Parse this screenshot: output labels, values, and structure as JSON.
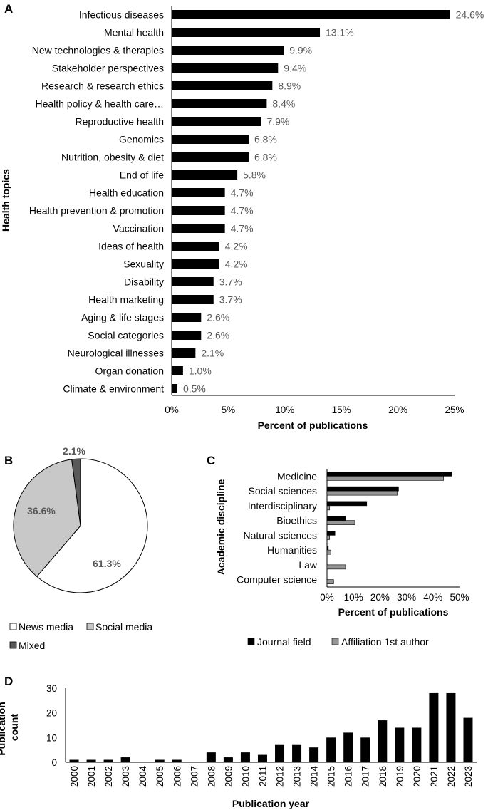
{
  "panels": {
    "a": "A",
    "b": "B",
    "c": "C",
    "d": "D"
  },
  "chart_data": [
    {
      "panel": "A",
      "type": "bar",
      "orientation": "horizontal",
      "xlabel": "Percent of publications",
      "ylabel": "Health topics",
      "xlim": [
        0,
        25
      ],
      "xticks": [
        "0%",
        "5%",
        "10%",
        "15%",
        "20%",
        "25%"
      ],
      "categories": [
        "Infectious diseases",
        "Mental health",
        "New technologies & therapies",
        "Stakeholder perspectives",
        "Research & research ethics",
        "Health policy & health care…",
        "Reproductive health",
        "Genomics",
        "Nutrition, obesity & diet",
        "End of life",
        "Health education",
        "Health prevention & promotion",
        "Vaccination",
        "Ideas of health",
        "Sexuality",
        "Disability",
        "Health marketing",
        "Aging & life stages",
        "Social categories",
        "Neurological illnesses",
        "Organ donation",
        "Climate & environment"
      ],
      "values": [
        24.6,
        13.1,
        9.9,
        9.4,
        8.9,
        8.4,
        7.9,
        6.8,
        6.8,
        5.8,
        4.7,
        4.7,
        4.7,
        4.2,
        4.2,
        3.7,
        3.7,
        2.6,
        2.6,
        2.1,
        1.0,
        0.5
      ],
      "data_labels": [
        "24.6%",
        "13.1%",
        "9.9%",
        "9.4%",
        "8.9%",
        "8.4%",
        "7.9%",
        "6.8%",
        "6.8%",
        "5.8%",
        "4.7%",
        "4.7%",
        "4.7%",
        "4.2%",
        "4.2%",
        "3.7%",
        "3.7%",
        "2.6%",
        "2.6%",
        "2.1%",
        "1.0%",
        "0.5%"
      ],
      "bar_color": "#000000",
      "grid": false
    },
    {
      "panel": "B",
      "type": "pie",
      "categories": [
        "News media",
        "Social media",
        "Mixed"
      ],
      "values": [
        61.3,
        36.6,
        2.1
      ],
      "data_labels": [
        "61.3%",
        "36.6%",
        "2.1%"
      ],
      "colors": [
        "#ffffff",
        "#c8c8c8",
        "#595959"
      ],
      "legend": "bottom"
    },
    {
      "panel": "C",
      "type": "bar",
      "orientation": "horizontal",
      "xlabel": "Percent of publications",
      "ylabel": "Academic discipline",
      "xlim": [
        0,
        50
      ],
      "xticks": [
        "0%",
        "10%",
        "20%",
        "30%",
        "40%",
        "50%"
      ],
      "categories": [
        "Medicine",
        "Social sciences",
        "Interdisciplinary",
        "Bioethics",
        "Natural sciences",
        "Humanities",
        "Law",
        "Computer science"
      ],
      "series": [
        {
          "name": "Journal field",
          "values": [
            47,
            27,
            15,
            7,
            3,
            0.5,
            0,
            0
          ],
          "color": "#000000"
        },
        {
          "name": "Affiliation 1st author",
          "values": [
            44,
            26.5,
            1,
            10.5,
            1,
            1.5,
            7,
            2.5
          ],
          "color": "#969696"
        }
      ],
      "legend": "bottom",
      "grid": false
    },
    {
      "panel": "D",
      "type": "bar",
      "orientation": "vertical",
      "xlabel": "Publication year",
      "ylabel": "Publication count",
      "ylim": [
        0,
        30
      ],
      "yticks": [
        "0",
        "10",
        "20",
        "30"
      ],
      "categories": [
        "2000",
        "2001",
        "2002",
        "2003",
        "2004",
        "2005",
        "2006",
        "2007",
        "2008",
        "2009",
        "2010",
        "2011",
        "2012",
        "2013",
        "2014",
        "2015",
        "2016",
        "2017",
        "2018",
        "2019",
        "2020",
        "2021",
        "2022",
        "2023"
      ],
      "values": [
        1,
        1,
        1,
        2,
        0,
        1,
        1,
        0,
        4,
        2,
        4,
        3,
        7,
        7,
        6,
        10,
        12,
        10,
        17,
        14,
        14,
        28,
        28,
        18
      ],
      "bar_color": "#000000",
      "grid": false
    }
  ]
}
